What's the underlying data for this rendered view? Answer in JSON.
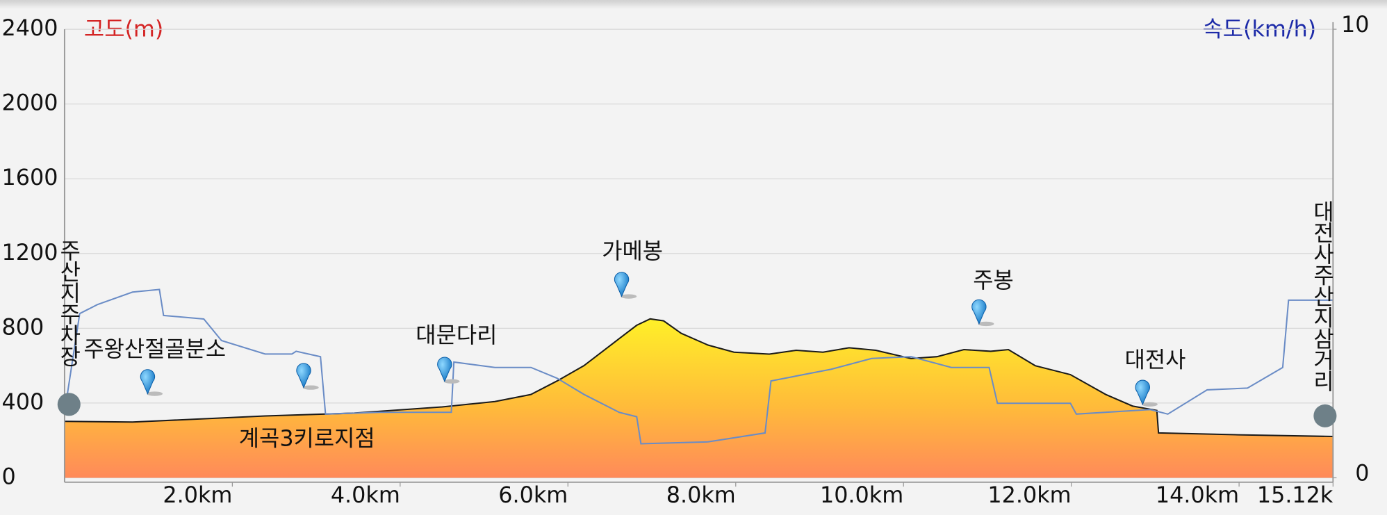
{
  "chart_data": {
    "type": "elevation-profile",
    "y_label": "고도(m)",
    "y2_label": "속도(km/h)",
    "xlim": [
      0,
      15.12
    ],
    "xticks": [
      {
        "value": 2,
        "label": "2.0km"
      },
      {
        "value": 4,
        "label": "4.0km"
      },
      {
        "value": 6,
        "label": "6.0km"
      },
      {
        "value": 8,
        "label": "8.0km"
      },
      {
        "value": 10,
        "label": "10.0km"
      },
      {
        "value": 12,
        "label": "12.0km"
      },
      {
        "value": 14,
        "label": "14.0km"
      },
      {
        "value": 15.12,
        "label": "15.12k"
      }
    ],
    "ylim": [
      0,
      2400
    ],
    "yticks": [
      0,
      400,
      800,
      1200,
      1600,
      2000,
      2400
    ],
    "y2lim": [
      0,
      10
    ],
    "y2ticks": [
      0,
      10
    ],
    "grid": true,
    "series": [
      {
        "name": "고도(m)",
        "color": "#1a1a1a",
        "x": [
          0,
          0.81,
          2.39,
          3.45,
          4.5,
          5.13,
          5.56,
          5.87,
          6.19,
          6.61,
          6.82,
          6.98,
          7.14,
          7.35,
          7.67,
          7.98,
          8.4,
          8.72,
          9.04,
          9.35,
          9.67,
          10.09,
          10.4,
          10.72,
          11.04,
          11.25,
          11.57,
          11.99,
          12.41,
          12.73,
          13.02,
          13.04,
          13.99,
          15.12
        ],
        "values": [
          302,
          298,
          331,
          346,
          379,
          408,
          446,
          518,
          600,
          744,
          816,
          850,
          840,
          773,
          710,
          672,
          662,
          682,
          672,
          696,
          682,
          638,
          648,
          686,
          677,
          686,
          600,
          552,
          446,
          384,
          360,
          240,
          230,
          221
        ]
      },
      {
        "name": "속도(km/h)",
        "color": "#6a8cc6",
        "axis": "y2",
        "x": [
          0,
          0.18,
          0.39,
          0.81,
          1.13,
          1.18,
          1.66,
          1.87,
          2.39,
          2.71,
          2.76,
          3.05,
          3.11,
          3.76,
          4.61,
          4.64,
          5.13,
          5.56,
          5.87,
          6.19,
          6.61,
          6.82,
          6.87,
          7.67,
          8.35,
          8.42,
          9.14,
          9.62,
          10.09,
          10.57,
          11.02,
          11.12,
          11.99,
          12.06,
          12.94,
          13.15,
          13.62,
          14.1,
          14.52,
          14.59,
          15.12
        ],
        "values": [
          1.46,
          3.66,
          3.86,
          4.14,
          4.2,
          3.62,
          3.54,
          3.06,
          2.76,
          2.76,
          2.82,
          2.7,
          1.42,
          1.46,
          1.46,
          2.58,
          2.46,
          2.46,
          2.22,
          1.86,
          1.46,
          1.36,
          0.76,
          0.8,
          1.0,
          2.16,
          2.42,
          2.66,
          2.7,
          2.46,
          2.46,
          1.66,
          1.66,
          1.42,
          1.52,
          1.42,
          1.96,
          2.0,
          2.46,
          3.96,
          3.96
        ]
      }
    ],
    "waypoints": [
      {
        "name": "주산지주차장",
        "km": 0
      },
      {
        "name": "주왕산절골분소",
        "km": 0.99
      },
      {
        "name": "계곡3키로지점",
        "km": 2.85
      },
      {
        "name": "대문다리",
        "km": 4.53
      },
      {
        "name": "가메봉",
        "km": 6.64
      },
      {
        "name": "주봉",
        "km": 10.9
      },
      {
        "name": "대전사",
        "km": 12.85
      },
      {
        "name": "대전사주산지삼거리",
        "km": 15.12
      }
    ]
  }
}
